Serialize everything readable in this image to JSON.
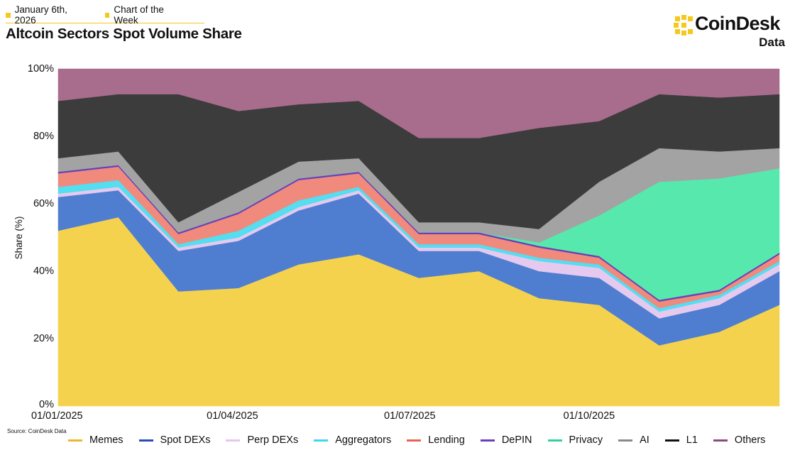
{
  "header": {
    "date": "January 6th, 2026",
    "tag": "Chart of the Week",
    "title": "Altcoin Sectors Spot Volume Share"
  },
  "logo": {
    "brand": "CoinDesk",
    "sub": "Data"
  },
  "source": "Source: CoinDesk Data",
  "colors": {
    "accent": "#f4c81d",
    "Memes": "#f5d24e",
    "Spot DEXs": "#4f7ed1",
    "Perp DEXs": "#e6c9ee",
    "Aggregators": "#55ddf0",
    "Lending": "#f08a7c",
    "DePIN": "#6a3fb8",
    "Privacy": "#57e8ad",
    "AI": "#a3a3a3",
    "L1": "#3c3c3c",
    "Others": "#a86c8c"
  },
  "chart_data": {
    "type": "area",
    "stacked": true,
    "title": "Altcoin Sectors Spot Volume Share",
    "xlabel": "",
    "ylabel": "Share (%)",
    "ylim": [
      0,
      100
    ],
    "yticks": [
      "0%",
      "20%",
      "40%",
      "60%",
      "80%",
      "100%"
    ],
    "xticks": [
      "01/01/2025",
      "01/04/2025",
      "01/07/2025",
      "01/10/2025"
    ],
    "x_range": [
      "01/01/2025",
      "06/01/2026"
    ],
    "legend_position": "bottom",
    "legend": [
      "Memes",
      "Spot DEXs",
      "Perp DEXs",
      "Aggregators",
      "Lending",
      "DePIN",
      "Privacy",
      "AI",
      "L1",
      "Others"
    ],
    "x": [
      "2025-01",
      "2025-02",
      "2025-03",
      "2025-04",
      "2025-05",
      "2025-06",
      "2025-07",
      "2025-08",
      "2025-09",
      "2025-10",
      "2025-11",
      "2025-12",
      "2026-01"
    ],
    "series": [
      {
        "name": "Memes",
        "values": [
          52,
          56,
          34,
          35,
          42,
          45,
          38,
          40,
          32,
          30,
          18,
          22,
          30
        ]
      },
      {
        "name": "Spot DEXs",
        "values": [
          10,
          8,
          12,
          14,
          16,
          18,
          8,
          6,
          8,
          8,
          8,
          8,
          10
        ]
      },
      {
        "name": "Perp DEXs",
        "values": [
          1,
          1,
          1,
          1,
          1,
          1,
          1,
          1,
          3,
          3,
          2,
          2,
          2
        ]
      },
      {
        "name": "Aggregators",
        "values": [
          2,
          2,
          1,
          2,
          2,
          1,
          1,
          1,
          1,
          1,
          1,
          1,
          1
        ]
      },
      {
        "name": "Lending",
        "values": [
          4,
          4,
          3,
          5,
          6,
          4,
          3,
          3,
          3,
          2,
          2,
          1,
          2
        ]
      },
      {
        "name": "DePIN",
        "values": [
          0.5,
          0.5,
          0.5,
          0.5,
          0.5,
          0.5,
          0.5,
          0.5,
          0.5,
          0.5,
          0.5,
          0.5,
          0.5
        ]
      },
      {
        "name": "Privacy",
        "values": [
          0,
          0,
          0,
          0,
          0,
          0,
          0,
          0,
          1,
          12,
          35,
          33,
          25
        ]
      },
      {
        "name": "AI",
        "values": [
          4,
          4,
          3,
          6,
          5,
          4,
          3,
          3,
          4,
          10,
          10,
          8,
          6
        ]
      },
      {
        "name": "L1",
        "values": [
          17,
          17,
          38,
          24,
          17,
          17,
          25,
          25,
          30,
          18,
          16,
          16,
          16
        ]
      },
      {
        "name": "Others",
        "values": [
          9.5,
          7.5,
          7.5,
          12.5,
          10.5,
          9.5,
          20.5,
          20.5,
          17.5,
          15.5,
          7.5,
          8.5,
          7.5
        ]
      }
    ]
  }
}
